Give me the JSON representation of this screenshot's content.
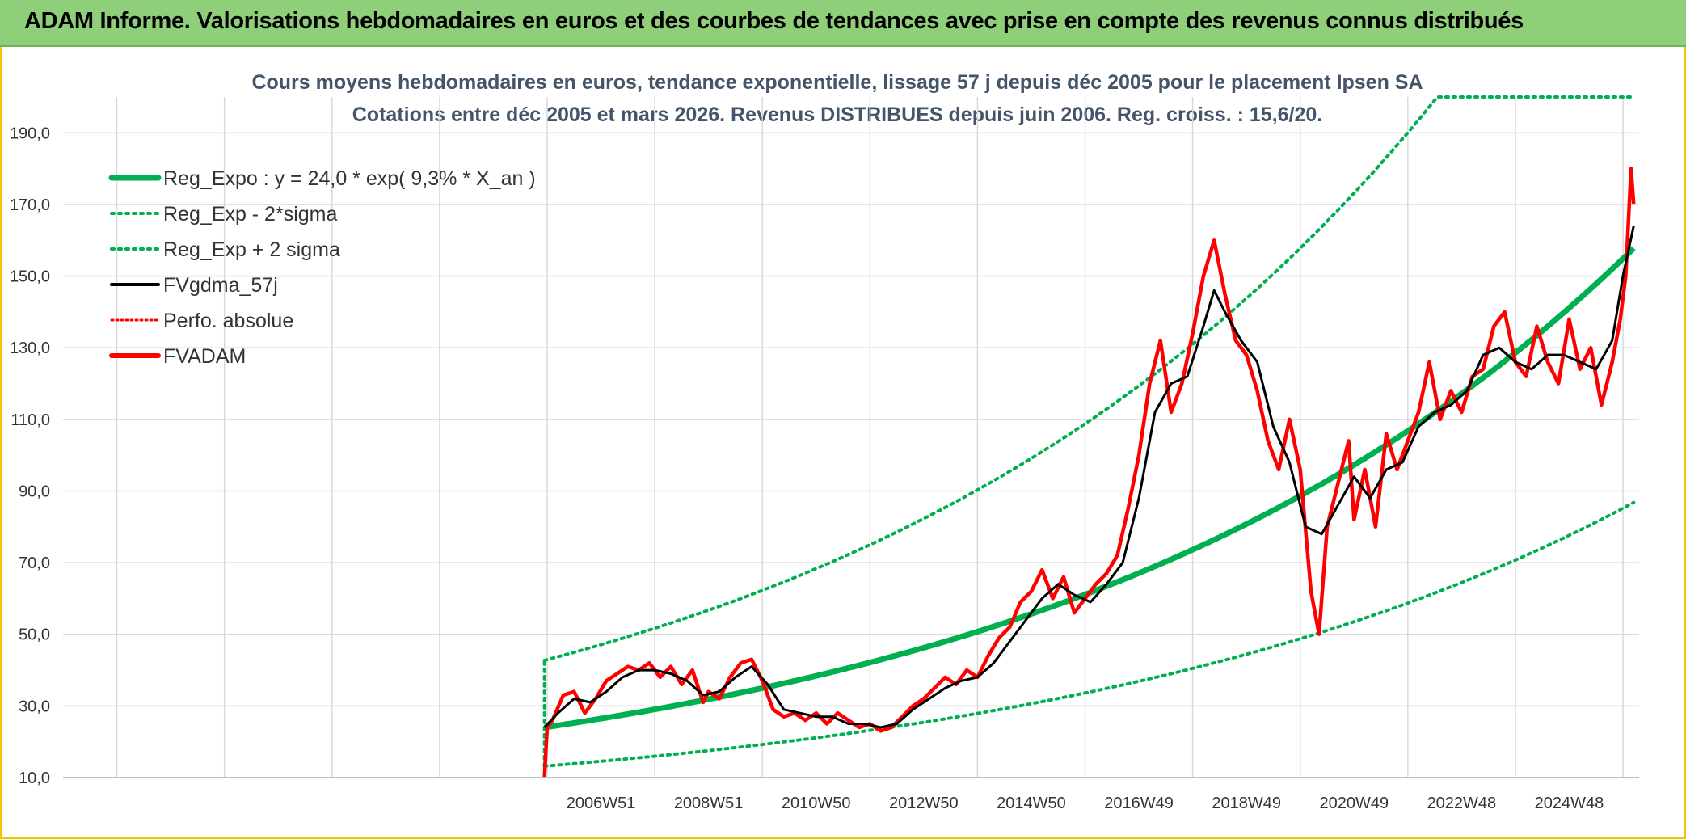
{
  "banner": {
    "title": "ADAM Informe. Valorisations hebdomadaires en euros et des courbes de tendances avec prise en compte des revenus connus distribués"
  },
  "colors": {
    "banner_bg": "#8fcf7a",
    "frame": "#f5c400",
    "trend": "#00b050",
    "smooth": "#000000",
    "price": "#ff0000",
    "title": "#44546a"
  },
  "chart_data": {
    "type": "line",
    "title": "Cours moyens hebdomadaires en euros, tendance exponentielle, lissage 57 j depuis déc 2005 pour le placement Ipsen SA",
    "subtitle": "Cotations entre déc 2005 et mars 2026. Revenus DISTRIBUES depuis juin 2006. Reg. croiss. : 15,6/20.",
    "xlabel": "",
    "ylabel": "",
    "ylim": [
      10,
      200
    ],
    "yticks": [
      "10,0",
      "30,0",
      "50,0",
      "70,0",
      "90,0",
      "110,0",
      "130,0",
      "150,0",
      "170,0",
      "190,0"
    ],
    "xticks": [
      "2006W51",
      "2008W51",
      "2010W50",
      "2012W50",
      "2014W50",
      "2016W49",
      "2018W49",
      "2020W49",
      "2022W48",
      "2024W48"
    ],
    "xtick_years": [
      2007.0,
      2009.0,
      2011.0,
      2013.0,
      2015.0,
      2017.0,
      2019.0,
      2021.0,
      2023.0,
      2025.0
    ],
    "x_range_years": [
      1997.0,
      2026.3
    ],
    "grid": true,
    "legend_position": "top-left",
    "legend": [
      {
        "label": "Reg_Expo : y = 24,0 * exp( 9,3% *  X_an )",
        "style": "trend"
      },
      {
        "label": "Reg_Exp - 2*sigma",
        "style": "dotted-green"
      },
      {
        "label": "Reg_Exp + 2 sigma",
        "style": "dotted-green"
      },
      {
        "label": "FVgdma_57j",
        "style": "black"
      },
      {
        "label": "Perfo. absolue",
        "style": "dotted-red"
      },
      {
        "label": "FVADAM",
        "style": "red"
      }
    ],
    "regression": {
      "a": 24.0,
      "rate": 0.093,
      "start_year": 2005.95,
      "end_year": 2026.2,
      "lower_factor": 0.55,
      "upper_factor": 1.78,
      "upper_cap": 200
    },
    "series": [
      {
        "name": "FVADAM",
        "x": [
          2005.95,
          2006.0,
          2006.1,
          2006.3,
          2006.5,
          2006.7,
          2006.9,
          2007.1,
          2007.3,
          2007.5,
          2007.7,
          2007.9,
          2008.1,
          2008.3,
          2008.5,
          2008.7,
          2008.9,
          2009.0,
          2009.2,
          2009.4,
          2009.6,
          2009.8,
          2010.0,
          2010.2,
          2010.4,
          2010.6,
          2010.8,
          2011.0,
          2011.2,
          2011.4,
          2011.6,
          2011.8,
          2012.0,
          2012.2,
          2012.4,
          2012.6,
          2012.8,
          2013.0,
          2013.2,
          2013.4,
          2013.6,
          2013.8,
          2014.0,
          2014.2,
          2014.4,
          2014.6,
          2014.8,
          2015.0,
          2015.2,
          2015.4,
          2015.6,
          2015.8,
          2016.0,
          2016.2,
          2016.4,
          2016.6,
          2016.8,
          2017.0,
          2017.2,
          2017.4,
          2017.6,
          2017.8,
          2018.0,
          2018.2,
          2018.4,
          2018.6,
          2018.8,
          2019.0,
          2019.2,
          2019.4,
          2019.6,
          2019.8,
          2020.0,
          2020.2,
          2020.35,
          2020.5,
          2020.7,
          2020.9,
          2021.0,
          2021.2,
          2021.4,
          2021.6,
          2021.8,
          2022.0,
          2022.2,
          2022.4,
          2022.6,
          2022.8,
          2023.0,
          2023.2,
          2023.4,
          2023.6,
          2023.8,
          2024.0,
          2024.2,
          2024.4,
          2024.6,
          2024.8,
          2025.0,
          2025.2,
          2025.4,
          2025.6,
          2025.8,
          2025.95,
          2026.05,
          2026.15,
          2026.2
        ],
        "y": [
          10.0,
          24.0,
          26.0,
          33.0,
          34.0,
          28.0,
          32.0,
          37.0,
          39.0,
          41.0,
          40.0,
          42.0,
          38.0,
          41.0,
          36.0,
          40.0,
          31.0,
          34.0,
          32.0,
          38.0,
          42.0,
          43.0,
          37.0,
          29.0,
          27.0,
          28.0,
          26.0,
          28.0,
          25.0,
          28.0,
          26.0,
          24.0,
          25.0,
          23.0,
          24.0,
          27.0,
          30.0,
          32.0,
          35.0,
          38.0,
          36.0,
          40.0,
          38.0,
          44.0,
          49.0,
          52.0,
          59.0,
          62.0,
          68.0,
          60.0,
          66.0,
          56.0,
          60.0,
          64.0,
          67.0,
          72.0,
          85.0,
          100.0,
          120.0,
          132.0,
          112.0,
          120.0,
          134.0,
          150.0,
          160.0,
          145.0,
          132.0,
          128.0,
          118.0,
          104.0,
          96.0,
          110.0,
          96.0,
          62.0,
          50.0,
          80.0,
          92.0,
          104.0,
          82.0,
          96.0,
          80.0,
          106.0,
          96.0,
          104.0,
          112.0,
          126.0,
          110.0,
          118.0,
          112.0,
          122.0,
          124.0,
          136.0,
          140.0,
          126.0,
          122.0,
          136.0,
          126.0,
          120.0,
          138.0,
          124.0,
          130.0,
          114.0,
          126.0,
          138.0,
          150.0,
          180.0,
          170.0
        ]
      },
      {
        "name": "FVgdma_57j",
        "x": [
          2005.95,
          2006.2,
          2006.5,
          2006.8,
          2007.1,
          2007.4,
          2007.7,
          2008.0,
          2008.3,
          2008.6,
          2008.9,
          2009.2,
          2009.5,
          2009.8,
          2010.1,
          2010.4,
          2010.7,
          2011.0,
          2011.3,
          2011.6,
          2011.9,
          2012.2,
          2012.5,
          2012.8,
          2013.1,
          2013.4,
          2013.7,
          2014.0,
          2014.3,
          2014.6,
          2014.9,
          2015.2,
          2015.5,
          2015.8,
          2016.1,
          2016.4,
          2016.7,
          2017.0,
          2017.3,
          2017.6,
          2017.9,
          2018.2,
          2018.4,
          2018.6,
          2018.9,
          2019.2,
          2019.5,
          2019.8,
          2020.1,
          2020.4,
          2020.7,
          2021.0,
          2021.3,
          2021.6,
          2021.9,
          2022.2,
          2022.5,
          2022.8,
          2023.1,
          2023.4,
          2023.7,
          2024.0,
          2024.3,
          2024.6,
          2024.9,
          2025.2,
          2025.5,
          2025.8,
          2026.0,
          2026.2
        ],
        "y": [
          24.0,
          28.0,
          32.0,
          31.0,
          34.0,
          38.0,
          40.0,
          40.0,
          39.0,
          37.0,
          33.0,
          34.0,
          38.0,
          41.0,
          36.0,
          29.0,
          28.0,
          27.0,
          27.0,
          25.0,
          25.0,
          24.0,
          25.0,
          29.0,
          32.0,
          35.0,
          37.0,
          38.0,
          42.0,
          48.0,
          54.0,
          60.0,
          64.0,
          61.0,
          59.0,
          64.0,
          70.0,
          88.0,
          112.0,
          120.0,
          122.0,
          136.0,
          146.0,
          140.0,
          132.0,
          126.0,
          108.0,
          98.0,
          80.0,
          78.0,
          86.0,
          94.0,
          88.0,
          96.0,
          98.0,
          108.0,
          112.0,
          114.0,
          118.0,
          128.0,
          130.0,
          126.0,
          124.0,
          128.0,
          128.0,
          126.0,
          124.0,
          132.0,
          150.0,
          164.0
        ]
      }
    ]
  }
}
